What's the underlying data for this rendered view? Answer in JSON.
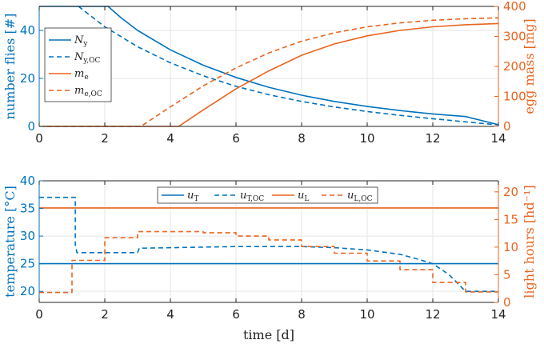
{
  "colors": {
    "blue": "#0072BD",
    "orange": "#E8641E",
    "axis": "#222222",
    "grid": "#e6e6e6"
  },
  "chart_data": [
    {
      "type": "line",
      "x_ticks": [
        "0",
        "2",
        "4",
        "6",
        "8",
        "10",
        "12",
        "14"
      ],
      "xlim": [
        0,
        14
      ],
      "ylabel_left": "number flies [#]",
      "ylabel_right": "egg mass [mg]",
      "ylim_left": [
        0,
        50
      ],
      "ylim_right": [
        0,
        400
      ],
      "y_ticks_left": [
        "0",
        "20",
        "40"
      ],
      "y_ticks_right": [
        "0",
        "100",
        "200",
        "300",
        "400"
      ],
      "legend_position": "top-left",
      "series": [
        {
          "name": "N",
          "sub": "y",
          "axis": "left",
          "color": "blue",
          "dash": false,
          "x": [
            0,
            2.1,
            2.5,
            3,
            4,
            5,
            6,
            7,
            8,
            9,
            10,
            11,
            12,
            13,
            14
          ],
          "y": [
            50,
            50,
            45.2,
            40,
            31.9,
            25.5,
            20.4,
            16.3,
            13.0,
            10.4,
            8.3,
            6.6,
            5.2,
            4.1,
            0.7
          ]
        },
        {
          "name": "N",
          "sub": "y,OC",
          "axis": "left",
          "color": "blue",
          "dash": true,
          "x": [
            1.2,
            2,
            3,
            4,
            5,
            6,
            7,
            8,
            9,
            10,
            11,
            12,
            13,
            14
          ],
          "y": [
            50,
            41.5,
            33.2,
            26.5,
            21.1,
            16.7,
            13.2,
            10.4,
            8.1,
            6.2,
            4.6,
            3.2,
            1.9,
            0.6
          ]
        },
        {
          "name": "m",
          "sub": "e",
          "axis": "right",
          "color": "orange",
          "dash": false,
          "x": [
            0,
            4.25,
            5,
            6,
            7,
            8,
            9,
            10,
            11,
            12,
            13,
            14
          ],
          "y": [
            0,
            0,
            55,
            125,
            185,
            237,
            275,
            302,
            320,
            332,
            339,
            343
          ]
        },
        {
          "name": "m",
          "sub": "e,OC",
          "axis": "right",
          "color": "orange",
          "dash": true,
          "x": [
            0,
            3.1,
            4,
            5,
            6,
            7,
            8,
            9,
            10,
            11,
            12,
            13,
            14
          ],
          "y": [
            0,
            0,
            65,
            135,
            195,
            245,
            284,
            312,
            332,
            345,
            354,
            359,
            362
          ]
        }
      ]
    },
    {
      "type": "line",
      "x_ticks": [
        "0",
        "2",
        "4",
        "6",
        "8",
        "10",
        "12",
        "14"
      ],
      "xlim": [
        0,
        14
      ],
      "xlabel": "time [d]",
      "ylabel_left": "temperature [°C]",
      "ylabel_right": "light hours [hd⁻¹]",
      "ylim_left": [
        18,
        40
      ],
      "ylim_right": [
        0,
        22
      ],
      "y_ticks_left": [
        "20",
        "25",
        "30",
        "35",
        "40"
      ],
      "y_ticks_right": [
        "0",
        "5",
        "10",
        "15",
        "20"
      ],
      "legend_position": "top-center",
      "series": [
        {
          "name": "u",
          "sub": "T",
          "axis": "left",
          "color": "blue",
          "dash": false,
          "x": [
            0,
            14
          ],
          "y": [
            25,
            25
          ]
        },
        {
          "name": "u",
          "sub": "T,OC",
          "axis": "left",
          "color": "blue",
          "dash": true,
          "x": [
            0,
            1.1,
            1.1,
            1.15,
            3,
            3.05,
            4,
            6,
            8,
            9,
            10,
            11,
            11.5,
            12,
            12.5,
            13,
            14
          ],
          "y": [
            37,
            37,
            28.5,
            27,
            27,
            27.8,
            27.9,
            28.1,
            28.1,
            27.9,
            27.5,
            26.7,
            25.9,
            25,
            23,
            20,
            20
          ]
        },
        {
          "name": "u",
          "sub": "L",
          "axis": "right",
          "color": "orange",
          "dash": false,
          "x": [
            0,
            14
          ],
          "y": [
            17.1,
            17.1
          ]
        },
        {
          "name": "u",
          "sub": "L,OC",
          "axis": "right",
          "color": "orange",
          "dash": true,
          "x": [
            0,
            1,
            1,
            2,
            2,
            3,
            3,
            4,
            4,
            5,
            5,
            6,
            6,
            7,
            7,
            8,
            8,
            9,
            9,
            10,
            10,
            11,
            11,
            12,
            12,
            13,
            13,
            14
          ],
          "y": [
            1.8,
            1.8,
            7.6,
            7.6,
            11.7,
            11.7,
            12.8,
            12.8,
            12.8,
            12.8,
            12.6,
            12.6,
            12,
            12,
            11.3,
            11.3,
            10.1,
            10.1,
            8.9,
            8.9,
            7.5,
            7.5,
            5.9,
            5.9,
            3.6,
            3.6,
            1.9,
            1.9
          ]
        }
      ]
    }
  ]
}
